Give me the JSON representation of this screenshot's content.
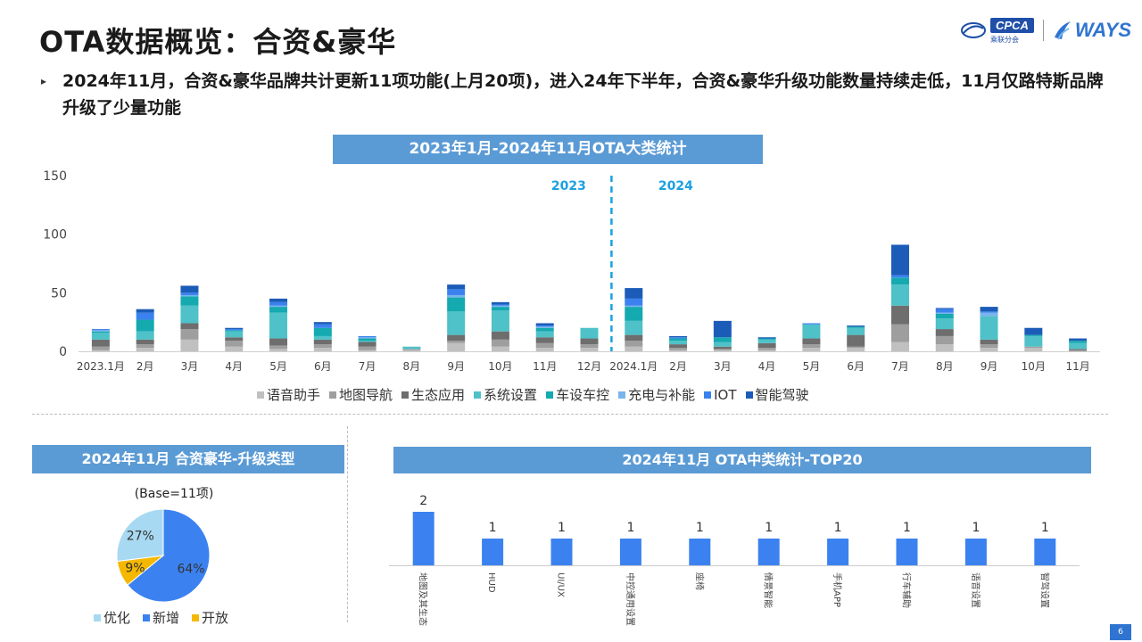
{
  "header": {
    "title": "OTA数据概览：合资&豪华",
    "logo_cpca": "CPCA",
    "logo_cpca_sub": "乘联分会",
    "logo_ways": "WAYS"
  },
  "summary": "2024年11月，合资&豪华品牌共计更新11项功能(上月20项)，进入24年下半年，合资&豪华升级功能数量持续走低，11月仅路特斯品牌升级了少量功能",
  "page_number": "6",
  "colors": {
    "banner": "#5b9bd5",
    "series": [
      "#c0c0c0",
      "#9e9e9e",
      "#6e6e6e",
      "#4fc1c8",
      "#15a9b0",
      "#79b4ec",
      "#3b82f0",
      "#1b5cb8"
    ]
  },
  "chart_data": [
    {
      "type": "bar",
      "stacked": true,
      "title": "2023年1月-2024年11月OTA大类统计",
      "categories": [
        "2023.1月",
        "2月",
        "3月",
        "4月",
        "5月",
        "6月",
        "7月",
        "8月",
        "9月",
        "10月",
        "11月",
        "12月",
        "2024.1月",
        "2月",
        "3月",
        "4月",
        "5月",
        "6月",
        "7月",
        "8月",
        "9月",
        "10月",
        "11月"
      ],
      "ylim": [
        0,
        150
      ],
      "yticks": [
        0,
        50,
        100,
        150
      ],
      "divider": {
        "after_category": "12月",
        "left_label": "2023",
        "right_label": "2024"
      },
      "legend_position": "bottom",
      "series": [
        {
          "name": "语音助手",
          "values": [
            1,
            3,
            10,
            4,
            2,
            3,
            1,
            1,
            7,
            4,
            3,
            3,
            4,
            1,
            1,
            1,
            3,
            3,
            8,
            6,
            3,
            3,
            0
          ]
        },
        {
          "name": "地图导航",
          "values": [
            3,
            3,
            9,
            5,
            3,
            3,
            3,
            1,
            2,
            6,
            4,
            3,
            5,
            2,
            1,
            2,
            3,
            1,
            15,
            7,
            3,
            1,
            1
          ]
        },
        {
          "name": "生态应用",
          "values": [
            6,
            4,
            5,
            3,
            6,
            4,
            4,
            0,
            5,
            7,
            5,
            5,
            5,
            3,
            2,
            4,
            5,
            10,
            16,
            6,
            4,
            0,
            1
          ]
        },
        {
          "name": "系统设置",
          "values": [
            6,
            7,
            15,
            5,
            22,
            3,
            1,
            2,
            20,
            18,
            5,
            9,
            12,
            3,
            4,
            3,
            12,
            6,
            18,
            9,
            20,
            9,
            5
          ]
        },
        {
          "name": "车设车控",
          "values": [
            1,
            10,
            8,
            1,
            5,
            7,
            2,
            0,
            12,
            3,
            3,
            0,
            12,
            2,
            4,
            1,
            0,
            1,
            6,
            4,
            0,
            1,
            2
          ]
        },
        {
          "name": "充电与补能",
          "values": [
            1,
            0,
            1,
            0,
            1,
            0,
            1,
            0,
            2,
            1,
            1,
            0,
            1,
            0,
            0,
            0,
            0,
            0,
            0,
            1,
            3,
            0,
            0
          ]
        },
        {
          "name": "IOT",
          "values": [
            1,
            6,
            2,
            1,
            3,
            3,
            1,
            0,
            5,
            1,
            1,
            0,
            6,
            1,
            0,
            0,
            1,
            0,
            2,
            3,
            1,
            0,
            0
          ]
        },
        {
          "name": "智能驾驶",
          "values": [
            0,
            3,
            6,
            1,
            3,
            2,
            0,
            0,
            4,
            2,
            2,
            0,
            9,
            1,
            14,
            1,
            0,
            1,
            26,
            1,
            4,
            6,
            2
          ]
        }
      ]
    },
    {
      "type": "pie",
      "title": "2024年11月 合资豪华-升级类型",
      "subtitle": "(Base=11项)",
      "legend_position": "bottom",
      "slices": [
        {
          "label": "新增",
          "value": 64,
          "display": "64%",
          "color": "#3b82f0"
        },
        {
          "label": "开放",
          "value": 9,
          "display": "9%",
          "color": "#f5b800"
        },
        {
          "label": "优化",
          "value": 27,
          "display": "27%",
          "color": "#a7d9f2"
        }
      ]
    },
    {
      "type": "bar",
      "title": "2024年11月 OTA中类统计-TOP20",
      "categories": [
        "地图及其生态",
        "HUD",
        "UI/UX",
        "中控通用设置",
        "座椅",
        "情景智能",
        "手机APP",
        "行车辅助",
        "语音设置",
        "智驾设置"
      ],
      "values": [
        2,
        1,
        1,
        1,
        1,
        1,
        1,
        1,
        1,
        1
      ],
      "color": "#3b82f0"
    }
  ]
}
